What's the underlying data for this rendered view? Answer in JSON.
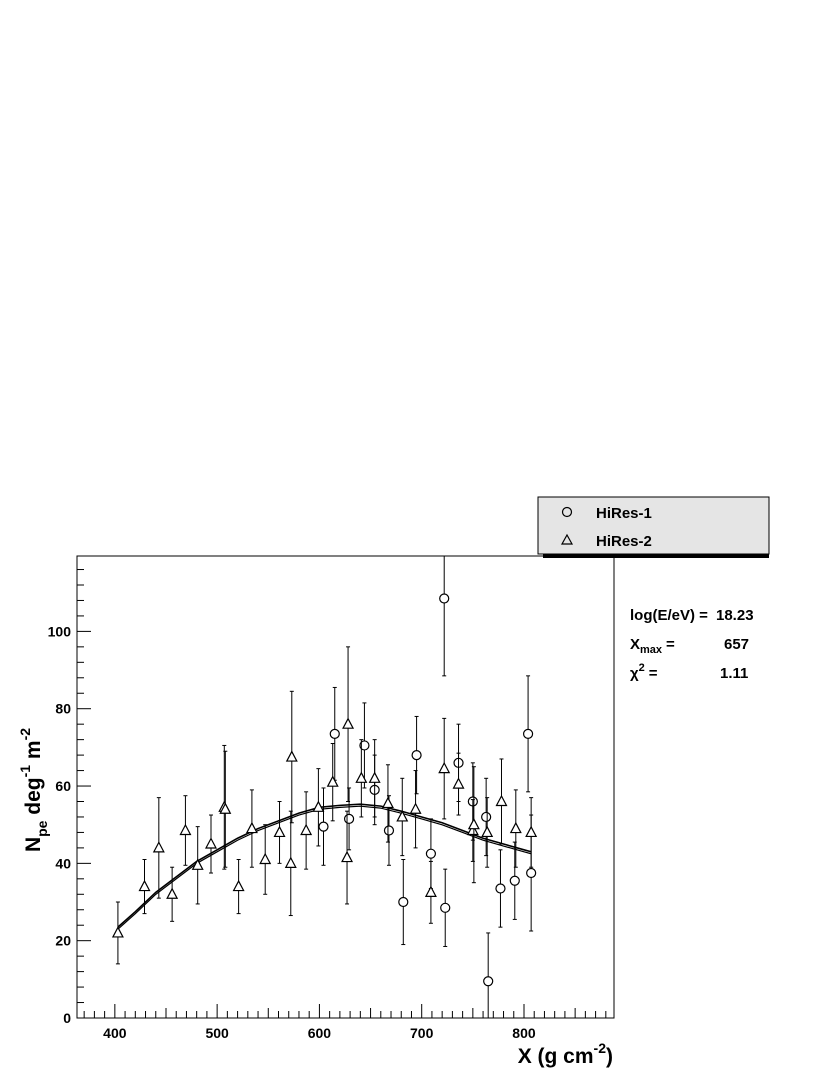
{
  "chart_data": {
    "type": "scatter",
    "xlabel": "X (g cm",
    "xlabel_sup": "-2",
    "xlabel_close": ")",
    "ylabel_parts": {
      "N": "N",
      "N_sub": "pe",
      "deg": " deg",
      "deg_sup": "-1",
      "m": " m",
      "m_sup": "-2"
    },
    "xlim": [
      363,
      888
    ],
    "ylim": [
      0,
      119.5
    ],
    "x_ticks": [
      400,
      500,
      600,
      700,
      800
    ],
    "y_ticks": [
      0,
      20,
      40,
      60,
      80,
      100
    ],
    "grid": false,
    "legend_position": "top-right",
    "series": [
      {
        "name": "HiRes-1",
        "marker": "circle",
        "points": [
          {
            "x": 604,
            "y": 49.5,
            "err": 10
          },
          {
            "x": 615,
            "y": 73.5,
            "err": 12
          },
          {
            "x": 629,
            "y": 51.5,
            "err": 8
          },
          {
            "x": 644,
            "y": 70.5,
            "err": 11
          },
          {
            "x": 654,
            "y": 59,
            "err": 9
          },
          {
            "x": 668,
            "y": 48.5,
            "err": 9
          },
          {
            "x": 682,
            "y": 30,
            "err": 11
          },
          {
            "x": 695,
            "y": 68,
            "err": 10
          },
          {
            "x": 709,
            "y": 42.5,
            "err": 9
          },
          {
            "x": 722,
            "y": 108.5,
            "err": 20
          },
          {
            "x": 723,
            "y": 28.5,
            "err": 10
          },
          {
            "x": 736,
            "y": 66,
            "err": 10
          },
          {
            "x": 750,
            "y": 56,
            "err": 10
          },
          {
            "x": 763,
            "y": 52,
            "err": 10
          },
          {
            "x": 765,
            "y": 9.5,
            "err": 12.5
          },
          {
            "x": 777,
            "y": 33.5,
            "err": 10
          },
          {
            "x": 791,
            "y": 35.5,
            "err": 10
          },
          {
            "x": 804,
            "y": 73.5,
            "err": 15
          },
          {
            "x": 807,
            "y": 37.5,
            "err": 15
          }
        ]
      },
      {
        "name": "HiRes-2",
        "marker": "triangle",
        "points": [
          {
            "x": 403,
            "y": 22,
            "err": 8
          },
          {
            "x": 429,
            "y": 34,
            "err": 7
          },
          {
            "x": 443,
            "y": 44,
            "err": 13
          },
          {
            "x": 456,
            "y": 32,
            "err": 7
          },
          {
            "x": 469,
            "y": 48.5,
            "err": 9
          },
          {
            "x": 481,
            "y": 39.5,
            "err": 10
          },
          {
            "x": 494,
            "y": 45,
            "err": 7.5
          },
          {
            "x": 507,
            "y": 54.5,
            "err": 16
          },
          {
            "x": 508,
            "y": 54,
            "err": 15
          },
          {
            "x": 521,
            "y": 34,
            "err": 7
          },
          {
            "x": 534,
            "y": 49,
            "err": 10
          },
          {
            "x": 547,
            "y": 41,
            "err": 9
          },
          {
            "x": 561,
            "y": 48,
            "err": 8
          },
          {
            "x": 572,
            "y": 40,
            "err": 13.5
          },
          {
            "x": 573,
            "y": 67.5,
            "err": 17
          },
          {
            "x": 587,
            "y": 48.5,
            "err": 10
          },
          {
            "x": 599,
            "y": 54.5,
            "err": 10
          },
          {
            "x": 613,
            "y": 61,
            "err": 10
          },
          {
            "x": 627,
            "y": 41.5,
            "err": 12
          },
          {
            "x": 628,
            "y": 76,
            "err": 20
          },
          {
            "x": 641,
            "y": 62,
            "err": 10
          },
          {
            "x": 654,
            "y": 62,
            "err": 10
          },
          {
            "x": 667,
            "y": 55.5,
            "err": 10
          },
          {
            "x": 681,
            "y": 52,
            "err": 10
          },
          {
            "x": 694,
            "y": 54,
            "err": 10
          },
          {
            "x": 709,
            "y": 32.5,
            "err": 8
          },
          {
            "x": 722,
            "y": 64.5,
            "err": 13
          },
          {
            "x": 736,
            "y": 60.5,
            "err": 8
          },
          {
            "x": 750,
            "y": 48.5,
            "err": 8
          },
          {
            "x": 751,
            "y": 50,
            "err": 15
          },
          {
            "x": 764,
            "y": 48,
            "err": 9
          },
          {
            "x": 778,
            "y": 56,
            "err": 11
          },
          {
            "x": 792,
            "y": 49,
            "err": 10
          },
          {
            "x": 807,
            "y": 48,
            "err": 9
          }
        ]
      }
    ],
    "fit_curve": {
      "x": [
        403,
        420,
        440,
        460,
        480,
        500,
        520,
        540,
        560,
        580,
        600,
        620,
        640,
        660,
        680,
        700,
        720,
        740,
        760,
        780,
        800,
        807
      ],
      "y": [
        23.5,
        27.5,
        32.5,
        36.5,
        40.5,
        43.5,
        46.5,
        49,
        51,
        53,
        54.5,
        55,
        55.3,
        54.8,
        53.5,
        52,
        50.5,
        48.5,
        46.5,
        45,
        43.5,
        43
      ]
    }
  },
  "legend": {
    "items": [
      {
        "label": "HiRes-1",
        "marker": "circle"
      },
      {
        "label": "HiRes-2",
        "marker": "triangle"
      }
    ]
  },
  "info": {
    "energy_label": "log(E/eV) =",
    "energy_value": "18.23",
    "xmax_label": "X",
    "xmax_sub": "max",
    "xmax_eq": "=",
    "xmax_value": "657",
    "chi_label": "χ",
    "chi_sup": "2",
    "chi_eq": "=",
    "chi_value": "1.11"
  },
  "colors": {
    "marker": "#000000",
    "legend_bg": "#e5e5e5",
    "axis": "#000000"
  }
}
